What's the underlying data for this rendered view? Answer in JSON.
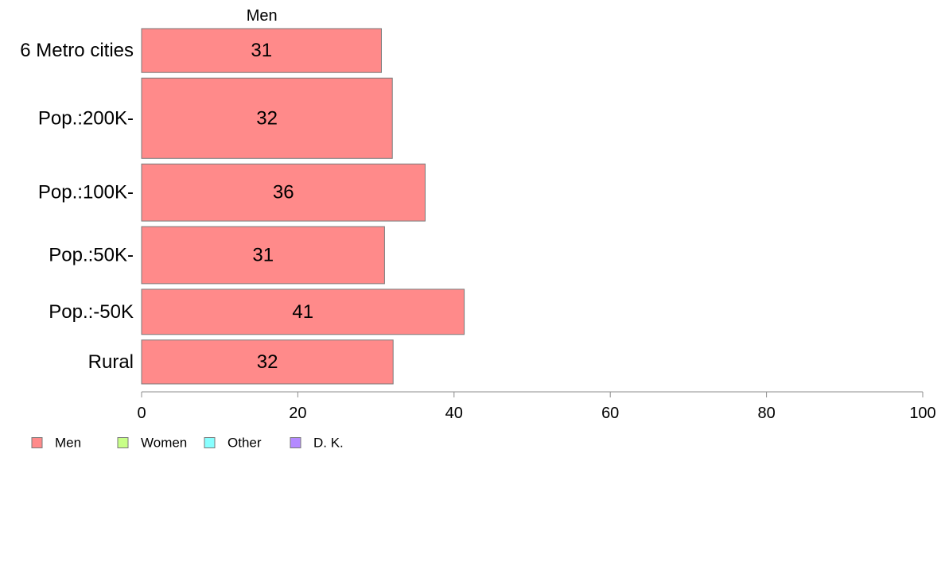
{
  "chart_data": {
    "type": "bar",
    "orientation": "horizontal",
    "column_header": "Men",
    "categories": [
      "6 Metro cities",
      "Pop.:200K-",
      "Pop.:100K-",
      "Pop.:50K-",
      "Pop.:-50K",
      "Rural"
    ],
    "series": [
      {
        "name": "Men",
        "color": "#ff8a8a",
        "values": [
          30.7,
          32.1,
          36.3,
          31.1,
          41.3,
          32.2
        ],
        "labels": [
          "31",
          "32",
          "36",
          "31",
          "41",
          "32"
        ]
      }
    ],
    "category_weights": [
      1.0,
      1.83,
      1.3,
      1.3,
      1.03,
      1.0
    ],
    "xlim": [
      0,
      100
    ],
    "xticks": [
      0,
      20,
      40,
      60,
      80,
      100
    ],
    "xtick_labels": [
      "0",
      "20",
      "40",
      "60",
      "80",
      "100"
    ],
    "grid": false,
    "legend_position": "bottom-left",
    "legend": [
      {
        "label": "Men",
        "color": "#ff8a8a"
      },
      {
        "label": "Women",
        "color": "#c8ff88"
      },
      {
        "label": "Other",
        "color": "#88ffff"
      },
      {
        "label": "D. K.",
        "color": "#b48aff"
      }
    ]
  }
}
